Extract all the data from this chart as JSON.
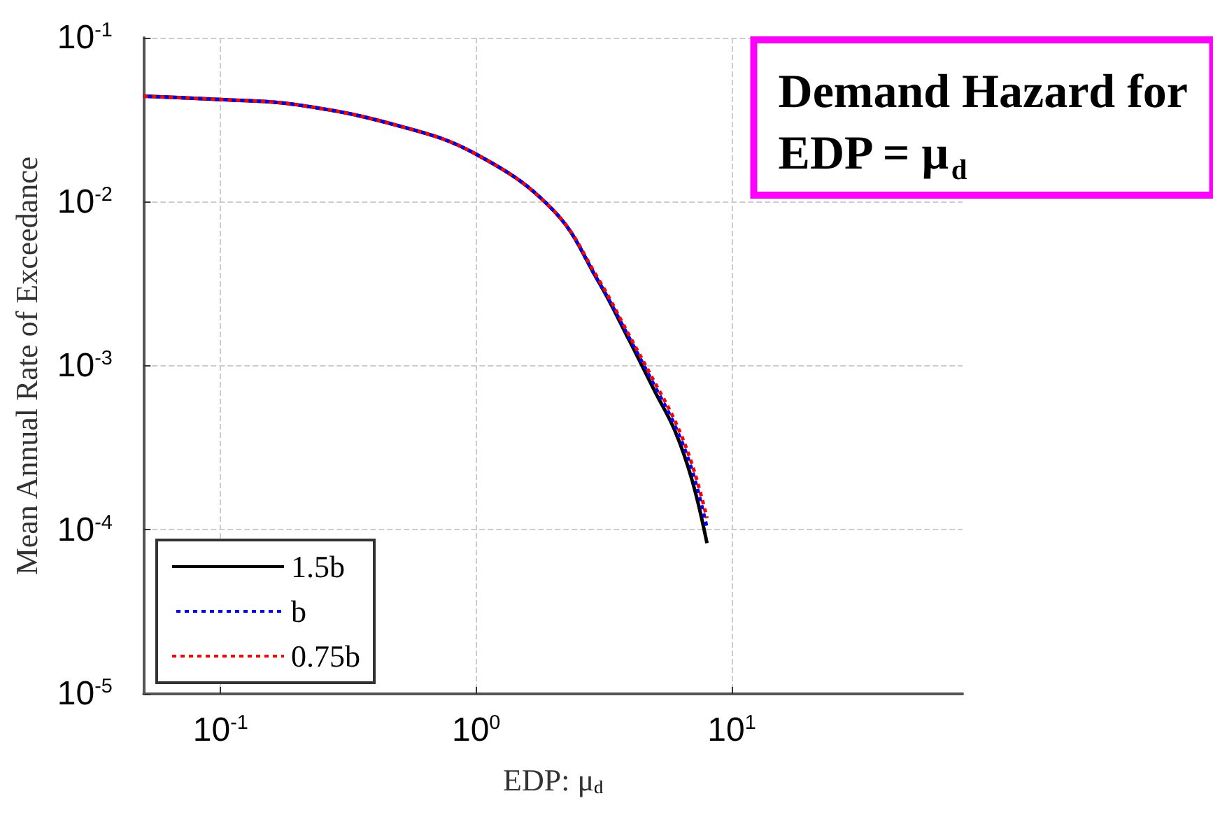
{
  "chart_data": {
    "type": "line",
    "title": "Demand Hazard for\nEDP = μ$_{d}$",
    "xlabel": "EDP: μ$_{d}$",
    "ylabel": "Mean Annual Rate of Exceedance",
    "x": [
      0.05,
      0.1,
      0.2,
      0.5,
      1,
      2,
      3,
      4,
      5,
      6,
      7,
      8
    ],
    "series": [
      {
        "name": "1.5b",
        "color": "#000000",
        "line_style": "solid",
        "values": [
          0.044,
          0.042,
          0.039,
          0.029,
          0.0195,
          0.0089,
          0.0033,
          0.0014,
          0.0007,
          0.0004,
          0.0002,
          8.3e-05
        ]
      },
      {
        "name": "b",
        "color": "#0000ff",
        "line_style": "dotted",
        "values": [
          0.044,
          0.042,
          0.039,
          0.029,
          0.0195,
          0.0089,
          0.0033,
          0.00145,
          0.00075,
          0.00043,
          0.00023,
          0.000103
        ]
      },
      {
        "name": "0.75b",
        "color": "#ff0000",
        "line_style": "dotted",
        "values": [
          0.044,
          0.042,
          0.039,
          0.029,
          0.0195,
          0.0089,
          0.0034,
          0.0015,
          0.00079,
          0.00046,
          0.00025,
          0.000118
        ]
      }
    ],
    "log": "xy",
    "xlim": [
      0.05,
      80
    ],
    "ylim": [
      1e-05,
      0.1
    ],
    "xticks": [
      {
        "value": 0.1,
        "label": "10$^{-1}$"
      },
      {
        "value": 1,
        "label": "10$^{0}$"
      },
      {
        "value": 10,
        "label": "10$^{1}$"
      }
    ],
    "yticks": [
      {
        "value": 1e-05,
        "label": "10$^{-5}$"
      },
      {
        "value": 0.0001,
        "label": "10$^{-4}$"
      },
      {
        "value": 0.001,
        "label": "10$^{-3}$"
      },
      {
        "value": 0.01,
        "label": "10$^{-2}$"
      },
      {
        "value": 0.1,
        "label": "10$^{-1}$"
      }
    ],
    "grid": true,
    "legend": "bottom left",
    "marker": "none"
  }
}
